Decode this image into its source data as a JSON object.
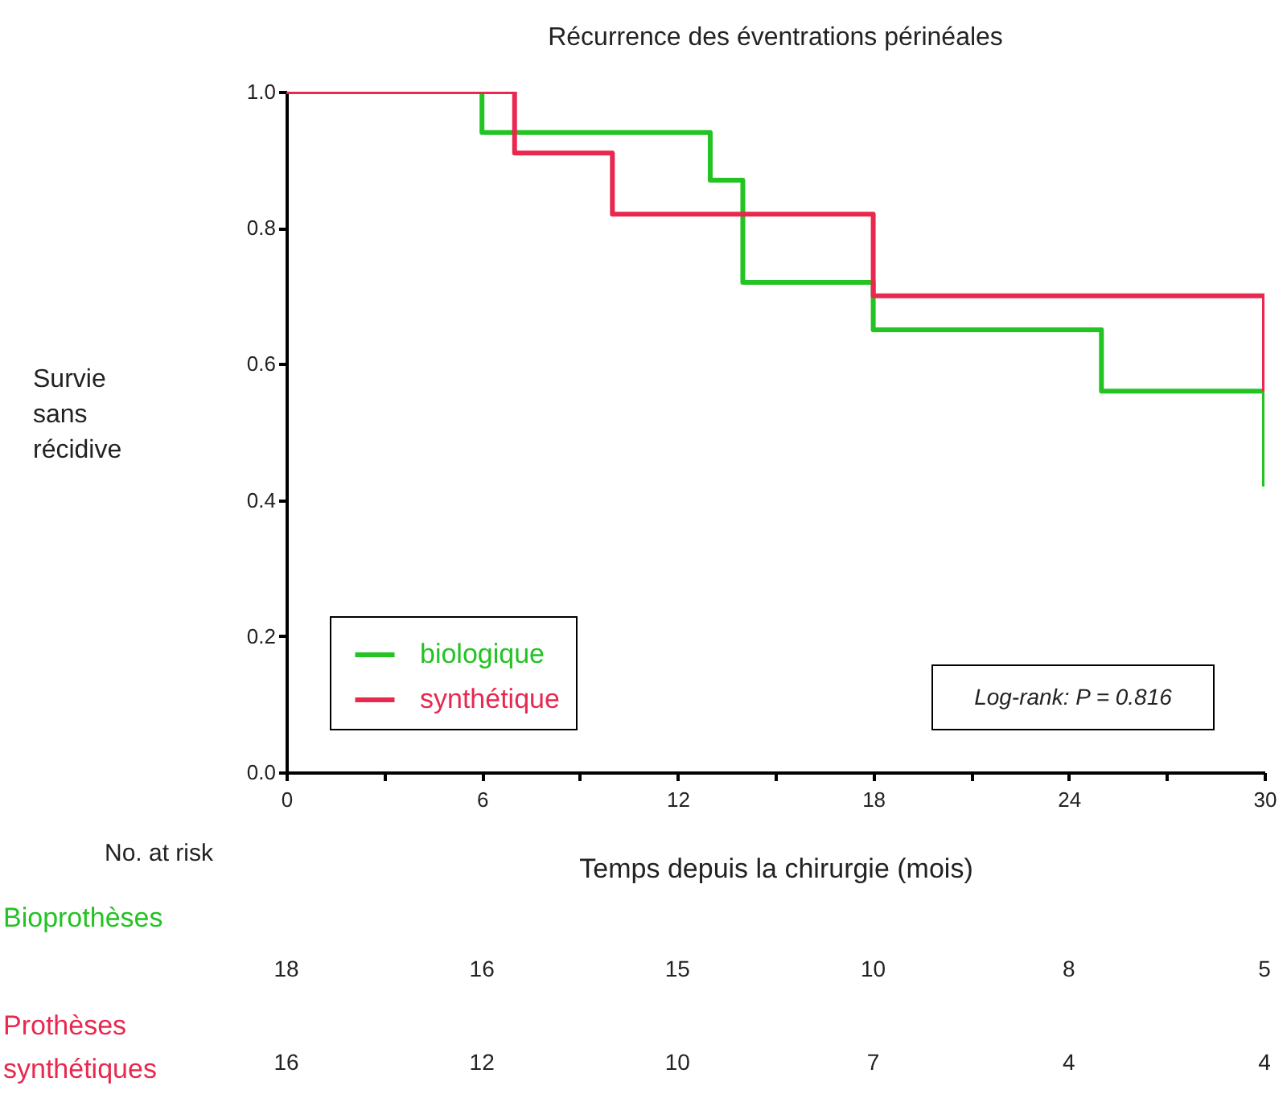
{
  "chart_data": {
    "type": "step",
    "title": "Récurrence des éventrations périnéales",
    "xlabel": "Temps depuis la chirurgie (mois)",
    "ylabel": "Survie sans récidive",
    "series": [
      {
        "name": "biologique",
        "color": "#22c322",
        "x": [
          0,
          6,
          13,
          14,
          18,
          25,
          30
        ],
        "values": [
          1,
          0.94,
          0.87,
          0.72,
          0.65,
          0.56,
          0.42
        ]
      },
      {
        "name": "synthétique",
        "color": "#e8284f",
        "x": [
          0,
          7,
          10,
          18,
          30
        ],
        "values": [
          1,
          0.91,
          0.82,
          0.7,
          0.56
        ]
      }
    ],
    "xlim": [
      0,
      30
    ],
    "xticks": [
      0,
      {
        "value": 3,
        "label": null
      },
      6,
      {
        "value": 9,
        "label": null
      },
      12,
      {
        "value": 15,
        "label": null
      },
      18,
      {
        "value": 21,
        "label": null
      },
      24,
      {
        "value": 27,
        "label": null
      },
      30
    ],
    "ylim": [
      0,
      1
    ],
    "yticks": [
      {
        "value": 0,
        "label": "0.0"
      },
      0.2,
      0.4,
      0.6,
      0.8,
      {
        "value": 1,
        "label": "1.0"
      }
    ],
    "legend": "bottom left",
    "grid": false,
    "annotations": [
      "No. at risk",
      "Bioprothèses",
      "18",
      "16",
      "15",
      "10",
      "8",
      "5",
      "Prothèses synthétiques",
      "16",
      "12",
      "10",
      "7",
      "4",
      "4",
      "Log-rank: P = 0.816"
    ]
  }
}
